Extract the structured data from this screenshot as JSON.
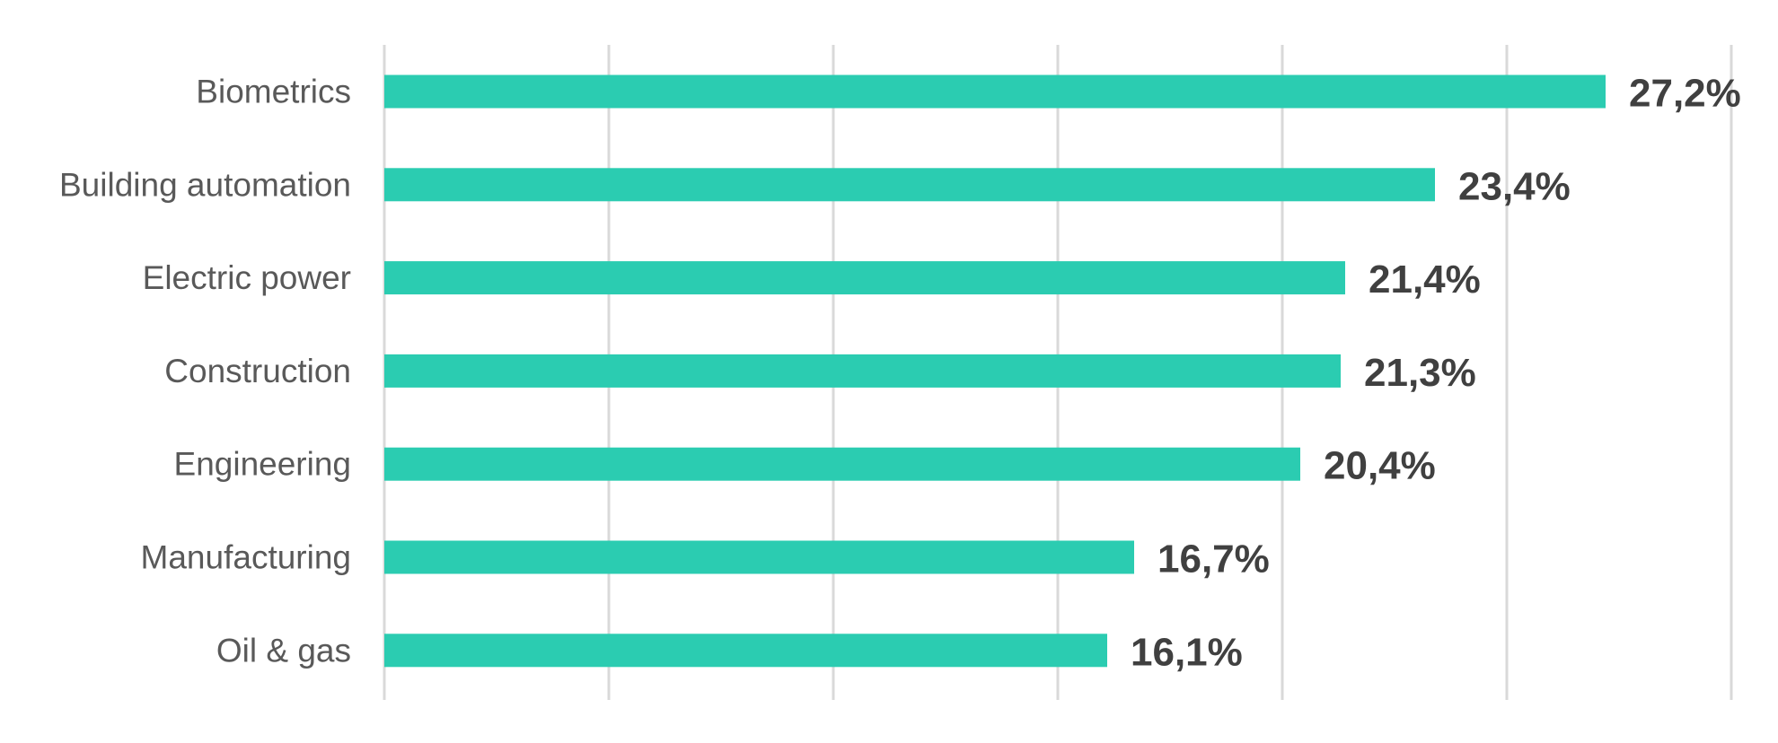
{
  "chart_data": {
    "type": "bar",
    "orientation": "horizontal",
    "categories": [
      "Biometrics",
      "Building automation",
      "Electric power",
      "Construction",
      "Engineering",
      "Manufacturing",
      "Oil & gas"
    ],
    "values": [
      27.2,
      23.4,
      21.4,
      21.3,
      20.4,
      16.7,
      16.1
    ],
    "value_labels": [
      "27,2%",
      "23,4%",
      "21,4%",
      "21,3%",
      "20,4%",
      "16,7%",
      "16,1%"
    ],
    "title": "",
    "xlabel": "",
    "ylabel": "",
    "xlim": [
      0,
      30
    ],
    "x_gridline_step": 5,
    "grid": true,
    "legend": "none",
    "bar_color": "#2bccb1",
    "gridline_color": "#d9d9d9"
  }
}
